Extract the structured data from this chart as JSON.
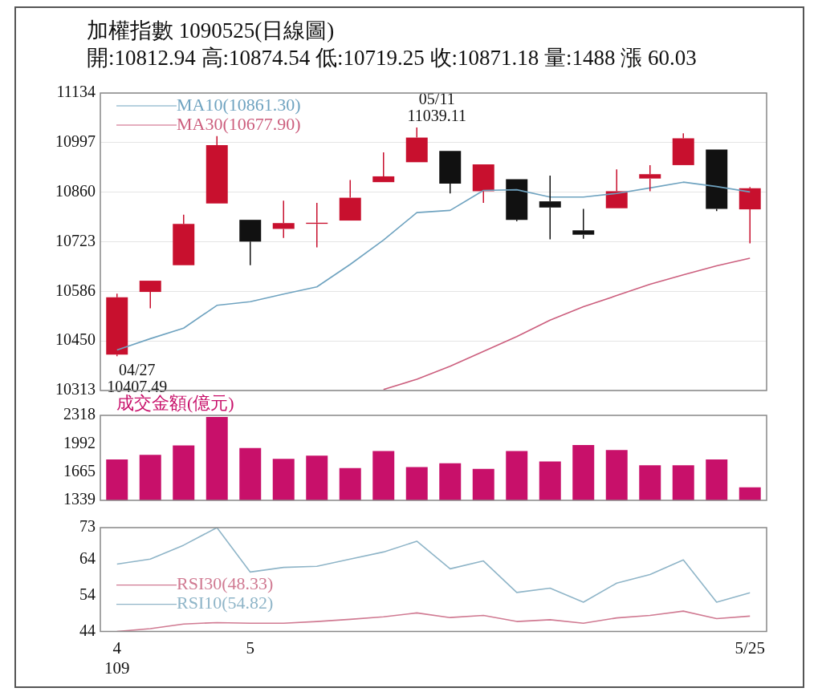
{
  "chart_data": [
    {
      "type": "candlestick",
      "title": "加權指數 1090525(日線圖)",
      "subtitle": "開:10812.94 高:10874.54 低:10719.25 收:10871.18 量:1488 漲 60.03",
      "categories": [
        null,
        null,
        null,
        null,
        null,
        null,
        null,
        null,
        null,
        null,
        null,
        null,
        null,
        null,
        null,
        null,
        null,
        null,
        null,
        null
      ],
      "ohlc": [
        [
          10412,
          10580,
          10407.49,
          10570
        ],
        [
          10585,
          10616,
          10540,
          10616
        ],
        [
          10659,
          10798,
          10659,
          10773
        ],
        [
          10829,
          11015,
          10829,
          10990
        ],
        [
          10784,
          10784,
          10659,
          10724
        ],
        [
          10759,
          10837,
          10734,
          10775
        ],
        [
          10773,
          10831,
          10708,
          10776
        ],
        [
          10782,
          10894,
          10782,
          10845
        ],
        [
          10888,
          10970,
          10888,
          10904
        ],
        [
          10943,
          11039.11,
          10943,
          11011
        ],
        [
          10974,
          10974,
          10857,
          10884
        ],
        [
          10863,
          10937,
          10831,
          10937
        ],
        [
          10896,
          10896,
          10780,
          10784
        ],
        [
          10835,
          10906,
          10730,
          10818
        ],
        [
          10755,
          10814,
          10732,
          10743
        ],
        [
          10816,
          10923,
          10816,
          10863
        ],
        [
          10898,
          10935,
          10863,
          10910
        ],
        [
          10935,
          11023,
          10935,
          11009
        ],
        [
          10978,
          10978,
          10808,
          10814
        ],
        [
          10812.94,
          10874.54,
          10719.25,
          10871.18
        ]
      ],
      "colors": [
        "#c8102e",
        "#c8102e",
        "#c8102e",
        "#c8102e",
        "#111111",
        "#c8102e",
        "#c8102e",
        "#c8102e",
        "#c8102e",
        "#c8102e",
        "#111111",
        "#c8102e",
        "#111111",
        "#111111",
        "#111111",
        "#c8102e",
        "#c8102e",
        "#c8102e",
        "#111111",
        "#c8102e"
      ],
      "series": [
        {
          "name": "MA10(10861.30)",
          "type": "line",
          "color": "#6fa3c0",
          "values": [
            10425,
            10456,
            10485,
            10548,
            10558,
            10579,
            10599,
            10661,
            10728,
            10804,
            10810,
            10865,
            10867,
            10847,
            10847,
            10857,
            10872,
            10888,
            10876,
            10861
          ]
        },
        {
          "name": "MA30(10677.90)",
          "type": "line",
          "color": "#cc5f7e",
          "values": [
            null,
            null,
            null,
            null,
            null,
            null,
            null,
            null,
            10316,
            10344,
            10380,
            10421,
            10462,
            10507,
            10544,
            10575,
            10606,
            10632,
            10657,
            10678
          ]
        }
      ],
      "annotations": [
        "04/27\n10407.49",
        "05/11\n11039.11"
      ],
      "ylim": [
        10313,
        11134
      ],
      "yticks": [
        10313,
        10450,
        10586,
        10723,
        10860,
        10997,
        11134
      ],
      "grid": "y",
      "legend": "top left",
      "marker": "none"
    },
    {
      "type": "bar",
      "categories": [
        null,
        null,
        null,
        null,
        null,
        null,
        null,
        null,
        null,
        null,
        null,
        null,
        null,
        null,
        null,
        null,
        null,
        null,
        null,
        null
      ],
      "series": [
        {
          "name": "成交金額(億元)",
          "color": "#c8106a",
          "values": [
            1810,
            1862,
            1971,
            2300,
            1941,
            1818,
            1854,
            1710,
            1906,
            1723,
            1766,
            1701,
            1906,
            1788,
            1976,
            1919,
            1744,
            1744,
            1810,
            1488
          ]
        }
      ],
      "ylim": [
        1339,
        2318
      ],
      "yticks": [
        1339,
        1665,
        1992,
        2318
      ],
      "legend": "top left"
    },
    {
      "type": "line",
      "categories": [
        "4\n109",
        null,
        null,
        null,
        "5",
        null,
        null,
        null,
        null,
        null,
        null,
        null,
        null,
        null,
        null,
        null,
        null,
        null,
        null,
        "5/25"
      ],
      "series": [
        {
          "name": "RSI30(48.33)",
          "color": "#d07a92",
          "values": [
            44,
            44.8,
            46.1,
            46.5,
            46.3,
            46.3,
            46.8,
            47.4,
            48.1,
            49.2,
            47.9,
            48.5,
            46.8,
            47.3,
            46.3,
            47.8,
            48.5,
            49.7,
            47.6,
            48.3
          ]
        },
        {
          "name": "RSI10(54.82)",
          "color": "#8fb5c8",
          "values": [
            62.8,
            64.2,
            68.1,
            73,
            60.6,
            61.9,
            62.2,
            64.2,
            66.2,
            69.2,
            61.5,
            63.7,
            54.9,
            56.1,
            52.2,
            57.5,
            59.9,
            64.0,
            52.2,
            54.8
          ]
        }
      ],
      "ylim": [
        44,
        73
      ],
      "yticks": [
        44,
        54,
        64,
        73
      ],
      "legend": "bottom left",
      "marker": "none"
    }
  ]
}
